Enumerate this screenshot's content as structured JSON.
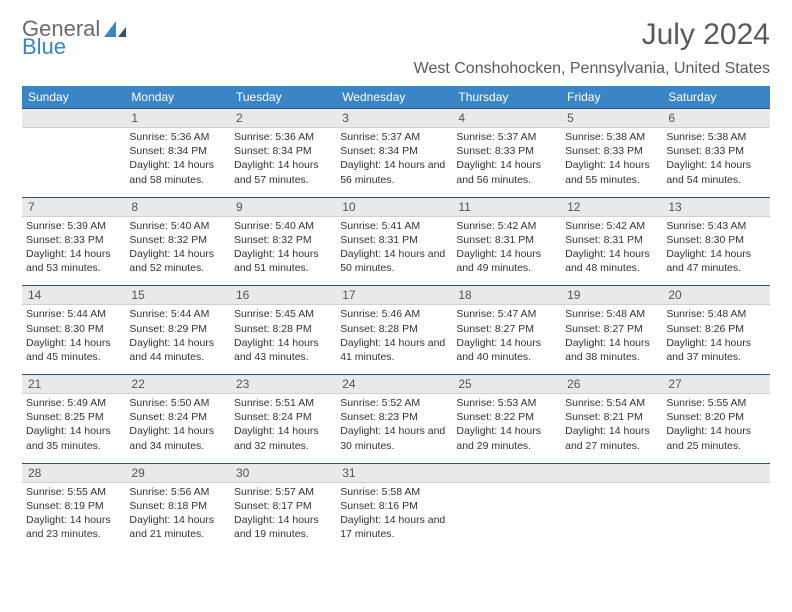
{
  "logo": {
    "word1": "General",
    "word2": "Blue"
  },
  "title": "July 2024",
  "location": "West Conshohocken, Pennsylvania, United States",
  "colors": {
    "header_bg": "#3a85c6",
    "header_text": "#ffffff",
    "daynum_bg": "#e9e9e9",
    "rule": "#2c5278",
    "text": "#333333",
    "title_text": "#5a5a5a",
    "logo_gray": "#6b6b6b"
  },
  "day_names": [
    "Sunday",
    "Monday",
    "Tuesday",
    "Wednesday",
    "Thursday",
    "Friday",
    "Saturday"
  ],
  "weeks": [
    [
      null,
      {
        "n": "1",
        "sunrise": "5:36 AM",
        "sunset": "8:34 PM",
        "daylight": "14 hours and 58 minutes."
      },
      {
        "n": "2",
        "sunrise": "5:36 AM",
        "sunset": "8:34 PM",
        "daylight": "14 hours and 57 minutes."
      },
      {
        "n": "3",
        "sunrise": "5:37 AM",
        "sunset": "8:34 PM",
        "daylight": "14 hours and 56 minutes."
      },
      {
        "n": "4",
        "sunrise": "5:37 AM",
        "sunset": "8:33 PM",
        "daylight": "14 hours and 56 minutes."
      },
      {
        "n": "5",
        "sunrise": "5:38 AM",
        "sunset": "8:33 PM",
        "daylight": "14 hours and 55 minutes."
      },
      {
        "n": "6",
        "sunrise": "5:38 AM",
        "sunset": "8:33 PM",
        "daylight": "14 hours and 54 minutes."
      }
    ],
    [
      {
        "n": "7",
        "sunrise": "5:39 AM",
        "sunset": "8:33 PM",
        "daylight": "14 hours and 53 minutes."
      },
      {
        "n": "8",
        "sunrise": "5:40 AM",
        "sunset": "8:32 PM",
        "daylight": "14 hours and 52 minutes."
      },
      {
        "n": "9",
        "sunrise": "5:40 AM",
        "sunset": "8:32 PM",
        "daylight": "14 hours and 51 minutes."
      },
      {
        "n": "10",
        "sunrise": "5:41 AM",
        "sunset": "8:31 PM",
        "daylight": "14 hours and 50 minutes."
      },
      {
        "n": "11",
        "sunrise": "5:42 AM",
        "sunset": "8:31 PM",
        "daylight": "14 hours and 49 minutes."
      },
      {
        "n": "12",
        "sunrise": "5:42 AM",
        "sunset": "8:31 PM",
        "daylight": "14 hours and 48 minutes."
      },
      {
        "n": "13",
        "sunrise": "5:43 AM",
        "sunset": "8:30 PM",
        "daylight": "14 hours and 47 minutes."
      }
    ],
    [
      {
        "n": "14",
        "sunrise": "5:44 AM",
        "sunset": "8:30 PM",
        "daylight": "14 hours and 45 minutes."
      },
      {
        "n": "15",
        "sunrise": "5:44 AM",
        "sunset": "8:29 PM",
        "daylight": "14 hours and 44 minutes."
      },
      {
        "n": "16",
        "sunrise": "5:45 AM",
        "sunset": "8:28 PM",
        "daylight": "14 hours and 43 minutes."
      },
      {
        "n": "17",
        "sunrise": "5:46 AM",
        "sunset": "8:28 PM",
        "daylight": "14 hours and 41 minutes."
      },
      {
        "n": "18",
        "sunrise": "5:47 AM",
        "sunset": "8:27 PM",
        "daylight": "14 hours and 40 minutes."
      },
      {
        "n": "19",
        "sunrise": "5:48 AM",
        "sunset": "8:27 PM",
        "daylight": "14 hours and 38 minutes."
      },
      {
        "n": "20",
        "sunrise": "5:48 AM",
        "sunset": "8:26 PM",
        "daylight": "14 hours and 37 minutes."
      }
    ],
    [
      {
        "n": "21",
        "sunrise": "5:49 AM",
        "sunset": "8:25 PM",
        "daylight": "14 hours and 35 minutes."
      },
      {
        "n": "22",
        "sunrise": "5:50 AM",
        "sunset": "8:24 PM",
        "daylight": "14 hours and 34 minutes."
      },
      {
        "n": "23",
        "sunrise": "5:51 AM",
        "sunset": "8:24 PM",
        "daylight": "14 hours and 32 minutes."
      },
      {
        "n": "24",
        "sunrise": "5:52 AM",
        "sunset": "8:23 PM",
        "daylight": "14 hours and 30 minutes."
      },
      {
        "n": "25",
        "sunrise": "5:53 AM",
        "sunset": "8:22 PM",
        "daylight": "14 hours and 29 minutes."
      },
      {
        "n": "26",
        "sunrise": "5:54 AM",
        "sunset": "8:21 PM",
        "daylight": "14 hours and 27 minutes."
      },
      {
        "n": "27",
        "sunrise": "5:55 AM",
        "sunset": "8:20 PM",
        "daylight": "14 hours and 25 minutes."
      }
    ],
    [
      {
        "n": "28",
        "sunrise": "5:55 AM",
        "sunset": "8:19 PM",
        "daylight": "14 hours and 23 minutes."
      },
      {
        "n": "29",
        "sunrise": "5:56 AM",
        "sunset": "8:18 PM",
        "daylight": "14 hours and 21 minutes."
      },
      {
        "n": "30",
        "sunrise": "5:57 AM",
        "sunset": "8:17 PM",
        "daylight": "14 hours and 19 minutes."
      },
      {
        "n": "31",
        "sunrise": "5:58 AM",
        "sunset": "8:16 PM",
        "daylight": "14 hours and 17 minutes."
      },
      null,
      null,
      null
    ]
  ],
  "labels": {
    "sunrise": "Sunrise:",
    "sunset": "Sunset:",
    "daylight": "Daylight:"
  }
}
